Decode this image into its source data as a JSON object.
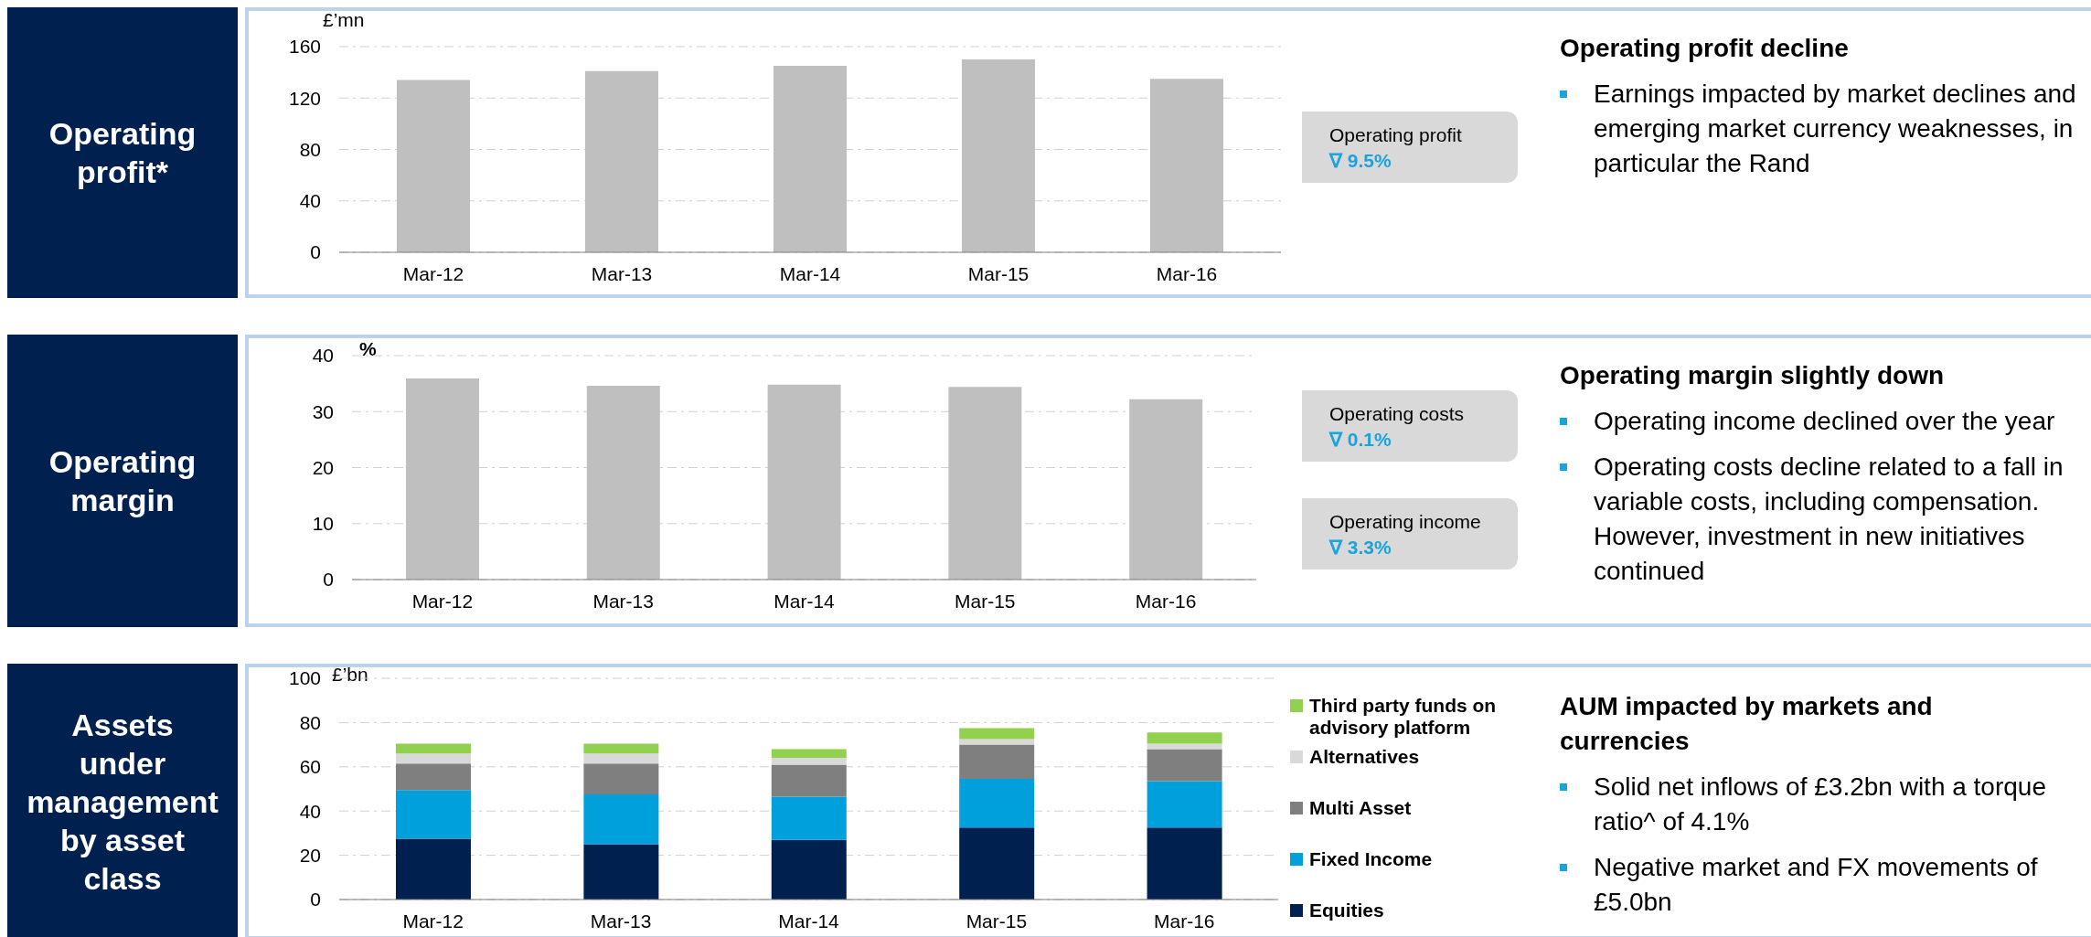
{
  "chart_data": [
    {
      "type": "bar",
      "title": "Operating profit*",
      "ylabel": "£’mn",
      "categories": [
        "Mar-12",
        "Mar-13",
        "Mar-14",
        "Mar-15",
        "Mar-16"
      ],
      "values": [
        134,
        141,
        145,
        150,
        135
      ],
      "color": "#bfbfbf",
      "ylim": [
        0,
        160
      ],
      "yticks": [
        0,
        40,
        80,
        120,
        160
      ],
      "grid": "y",
      "legend": false,
      "annotations": [
        "Operating profit\n∇ 9.5%",
        "Operating profit decline",
        "Earnings impacted by market declines and emerging market currency weaknesses, in particular the Rand"
      ]
    },
    {
      "type": "bar",
      "title": "Operating margin",
      "ylabel": "%",
      "categories": [
        "Mar-12",
        "Mar-13",
        "Mar-14",
        "Mar-15",
        "Mar-16"
      ],
      "values": [
        35.9,
        34.6,
        34.8,
        34.4,
        32.2
      ],
      "color": "#bfbfbf",
      "ylim": [
        0,
        40
      ],
      "yticks": [
        0,
        10,
        20,
        30,
        40
      ],
      "grid": "y",
      "legend": false,
      "annotations": [
        "Operating costs\n∇ 0.1%",
        "Operating income\n∇ 3.3%",
        "Operating margin slightly down",
        "Operating income declined over the year",
        "Operating costs decline related to a fall in variable costs, including compensation. However, investment in new initiatives continued"
      ]
    },
    {
      "type": "bar",
      "title": "Assets under management by asset class",
      "ylabel": "£’bn",
      "categories": [
        "Mar-12",
        "Mar-13",
        "Mar-14",
        "Mar-15",
        "Mar-16"
      ],
      "stacked": true,
      "series": [
        {
          "name": "Equities",
          "color": "#002050",
          "values": [
            27.5,
            25,
            27,
            32.5,
            32.5
          ]
        },
        {
          "name": "Fixed Income",
          "color": "#00a0dc",
          "values": [
            22,
            22.5,
            19.5,
            22,
            21
          ]
        },
        {
          "name": "Multi Asset",
          "color": "#7f7f7f",
          "values": [
            12,
            14,
            14.5,
            15.5,
            14.5
          ]
        },
        {
          "name": "Alternatives",
          "color": "#d9d9d9",
          "values": [
            4.5,
            4.5,
            3,
            2.5,
            2.5
          ]
        },
        {
          "name": "Third party funds on advisory platform",
          "color": "#92d050",
          "values": [
            4.5,
            4.5,
            4,
            5,
            5
          ]
        }
      ],
      "ylim": [
        0,
        100
      ],
      "yticks": [
        0,
        20,
        40,
        60,
        80,
        100
      ],
      "grid": "y",
      "legend": "right",
      "annotations": [
        "AUM impacted by markets and currencies",
        "Solid net inflows of £3.2bn with a torque ratio^ of 4.1%",
        "Negative market and FX movements of £5.0bn"
      ]
    }
  ]
}
